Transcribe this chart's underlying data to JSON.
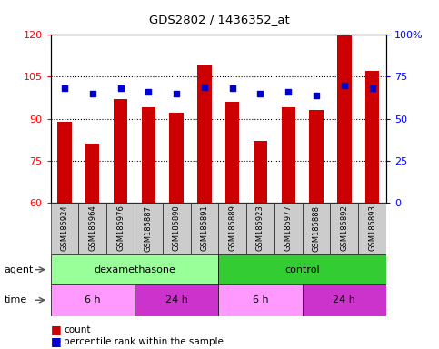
{
  "title": "GDS2802 / 1436352_at",
  "samples": [
    "GSM185924",
    "GSM185964",
    "GSM185976",
    "GSM185887",
    "GSM185890",
    "GSM185891",
    "GSM185889",
    "GSM185923",
    "GSM185977",
    "GSM185888",
    "GSM185892",
    "GSM185893"
  ],
  "counts": [
    89,
    81,
    97,
    94,
    92,
    109,
    96,
    82,
    94,
    93,
    120,
    107
  ],
  "percentile_ranks": [
    68,
    65,
    68,
    66,
    65,
    69,
    68,
    65,
    66,
    64,
    70,
    68
  ],
  "ylim_left": [
    60,
    120
  ],
  "ylim_right": [
    0,
    100
  ],
  "yticks_left": [
    60,
    75,
    90,
    105,
    120
  ],
  "yticks_right": [
    0,
    25,
    50,
    75,
    100
  ],
  "bar_color": "#cc0000",
  "dot_color": "#0000cc",
  "tick_area_color": "#cccccc",
  "agent_dex_color": "#99ff99",
  "agent_ctrl_color": "#33cc33",
  "time_6h_color": "#ff99ff",
  "time_24h_color": "#cc33cc",
  "agent_groups": [
    {
      "label": "dexamethasone",
      "start": 0,
      "end": 6
    },
    {
      "label": "control",
      "start": 6,
      "end": 12
    }
  ],
  "time_groups": [
    {
      "label": "6 h",
      "start": 0,
      "end": 3,
      "color": "#ff99ff"
    },
    {
      "label": "24 h",
      "start": 3,
      "end": 6,
      "color": "#cc33cc"
    },
    {
      "label": "6 h",
      "start": 6,
      "end": 9,
      "color": "#ff99ff"
    },
    {
      "label": "24 h",
      "start": 9,
      "end": 12,
      "color": "#cc33cc"
    }
  ],
  "legend_count_color": "#cc0000",
  "legend_dot_color": "#0000cc",
  "bar_width": 0.5,
  "figsize": [
    4.83,
    3.84
  ],
  "dpi": 100
}
